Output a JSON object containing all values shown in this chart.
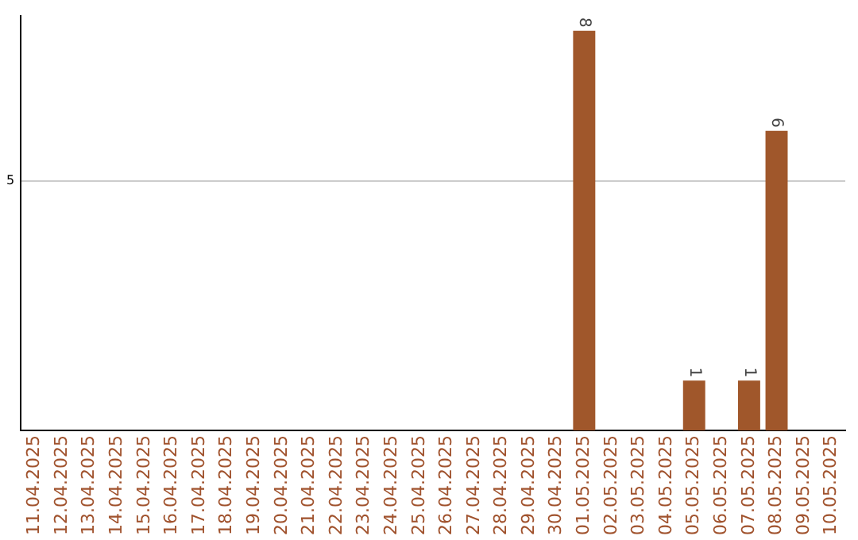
{
  "chart_data": {
    "type": "bar",
    "categories": [
      "11.04.2025",
      "12.04.2025",
      "13.04.2025",
      "14.04.2025",
      "15.04.2025",
      "16.04.2025",
      "17.04.2025",
      "18.04.2025",
      "19.04.2025",
      "20.04.2025",
      "21.04.2025",
      "22.04.2025",
      "23.04.2025",
      "24.04.2025",
      "25.04.2025",
      "26.04.2025",
      "27.04.2025",
      "28.04.2025",
      "29.04.2025",
      "30.04.2025",
      "01.05.2025",
      "02.05.2025",
      "03.05.2025",
      "04.05.2025",
      "05.05.2025",
      "06.05.2025",
      "07.05.2025",
      "08.05.2025",
      "09.05.2025",
      "10.05.2025"
    ],
    "values": [
      null,
      null,
      null,
      null,
      null,
      null,
      null,
      null,
      null,
      null,
      null,
      null,
      null,
      null,
      null,
      null,
      null,
      null,
      null,
      null,
      8,
      null,
      null,
      null,
      1,
      null,
      1,
      6,
      null,
      null
    ],
    "color": "#a0572b",
    "ylim": [
      0,
      8.3
    ],
    "yticks": [
      5
    ],
    "grid": "y",
    "data_labels": true,
    "legend": false
  }
}
